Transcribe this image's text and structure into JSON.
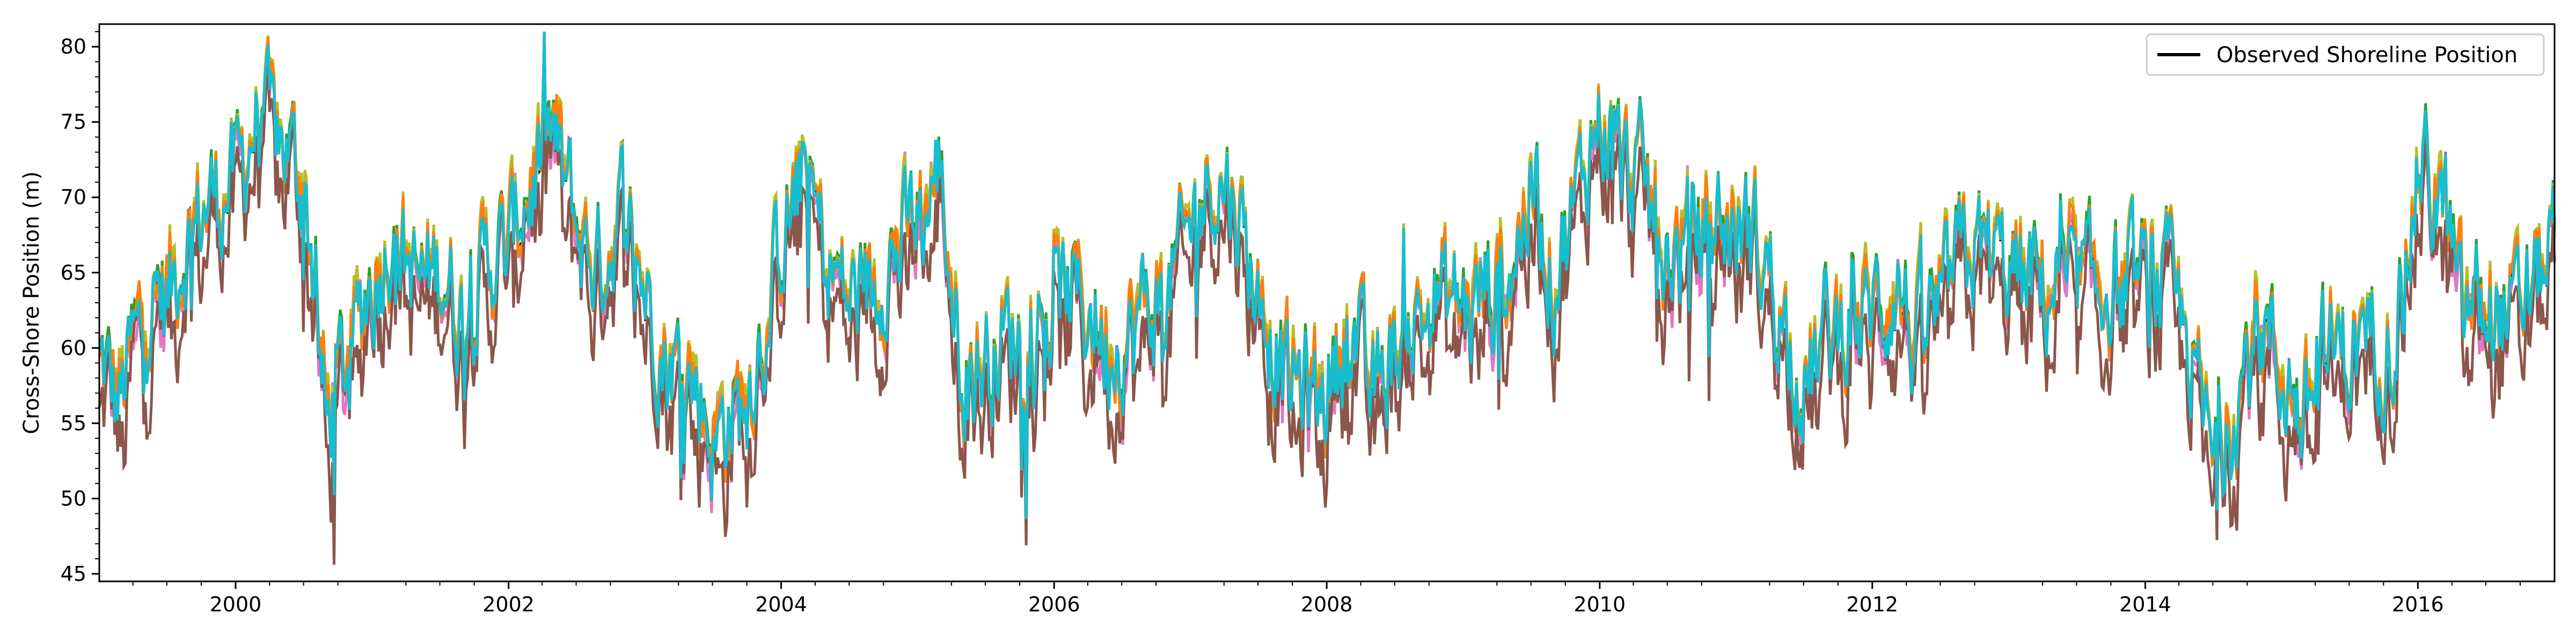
{
  "chart_data": {
    "type": "line",
    "title": "",
    "xlabel": "",
    "ylabel": "Cross-Shore Position (m)",
    "xlim": [
      "1999-01-01",
      "2017-01-01"
    ],
    "ylim": [
      44.5,
      81.5
    ],
    "x_ticks": [
      "2000",
      "2002",
      "2004",
      "2006",
      "2008",
      "2010",
      "2012",
      "2014",
      "2016"
    ],
    "y_ticks": [
      45,
      50,
      55,
      60,
      65,
      70,
      75,
      80
    ],
    "grid": false,
    "legend": {
      "position": "upper right",
      "entries": [
        "Observed Shoreline Position"
      ]
    },
    "dates": [
      "1999-01-01",
      "1999-03-01",
      "1999-05-01",
      "1999-07-01",
      "1999-09-01",
      "1999-11-01",
      "2000-01-01",
      "2000-03-01",
      "2000-05-01",
      "2000-07-01",
      "2000-09-01",
      "2000-11-01",
      "2001-01-01",
      "2001-03-01",
      "2001-05-01",
      "2001-07-01",
      "2001-09-01",
      "2001-11-01",
      "2002-01-01",
      "2002-03-01",
      "2002-05-01",
      "2002-07-01",
      "2002-09-01",
      "2002-11-01",
      "2003-01-01",
      "2003-03-01",
      "2003-05-01",
      "2003-07-01",
      "2003-09-01",
      "2003-11-01",
      "2004-01-01",
      "2004-03-01",
      "2004-05-01",
      "2004-07-01",
      "2004-09-01",
      "2004-11-01",
      "2005-01-01",
      "2005-03-01",
      "2005-05-01",
      "2005-07-01",
      "2005-09-01",
      "2005-11-01",
      "2006-01-01",
      "2006-03-01",
      "2006-05-01",
      "2006-07-01",
      "2006-09-01",
      "2006-11-01",
      "2007-01-01",
      "2007-03-01",
      "2007-05-01",
      "2007-07-01",
      "2007-09-01",
      "2007-11-01",
      "2008-01-01",
      "2008-03-01",
      "2008-05-01",
      "2008-07-01",
      "2008-09-01",
      "2008-11-01",
      "2009-01-01",
      "2009-03-01",
      "2009-05-01",
      "2009-07-01",
      "2009-09-01",
      "2009-11-01",
      "2010-01-01",
      "2010-03-01",
      "2010-05-01",
      "2010-07-01",
      "2010-09-01",
      "2010-11-01",
      "2011-01-01",
      "2011-03-01",
      "2011-05-01",
      "2011-07-01",
      "2011-09-01",
      "2011-11-01",
      "2012-01-01",
      "2012-03-01",
      "2012-05-01",
      "2012-07-01",
      "2012-09-01",
      "2012-11-01",
      "2013-01-01",
      "2013-03-01",
      "2013-05-01",
      "2013-07-01",
      "2013-09-01",
      "2013-11-01",
      "2014-01-01",
      "2014-03-01",
      "2014-05-01",
      "2014-07-01",
      "2014-09-01",
      "2014-11-01",
      "2015-01-01",
      "2015-03-01",
      "2015-05-01",
      "2015-07-01",
      "2015-09-01",
      "2015-11-01",
      "2016-01-01",
      "2016-03-01",
      "2016-05-01",
      "2016-07-01",
      "2016-09-01",
      "2016-11-01",
      "2017-01-01"
    ],
    "observed": [
      58.5,
      56.5,
      62.5,
      63.5,
      67.5,
      70.0,
      71.0,
      75.5,
      73.5,
      71.5,
      55.0,
      59.5,
      64.5,
      68.0,
      64.0,
      65.5,
      62.0,
      65.5,
      66.5,
      71.0,
      74.0,
      68.0,
      65.0,
      69.5,
      64.0,
      59.0,
      58.5,
      54.0,
      55.5,
      59.5,
      67.0,
      72.0,
      66.0,
      63.0,
      64.0,
      66.5,
      68.0,
      71.5,
      58.5,
      59.0,
      61.0,
      60.0,
      62.5,
      63.5,
      61.0,
      60.0,
      62.5,
      63.0,
      68.0,
      71.5,
      70.0,
      63.0,
      58.5,
      57.0,
      57.0,
      62.0,
      56.5,
      60.0,
      62.0,
      63.5,
      62.5,
      63.5,
      64.5,
      70.5,
      64.5,
      70.0,
      75.5,
      72.0,
      70.5,
      66.0,
      67.0,
      68.0,
      68.0,
      67.0,
      62.5,
      57.5,
      60.5,
      62.0,
      62.0,
      64.5,
      60.0,
      62.5,
      66.0,
      66.5,
      65.0,
      64.0,
      64.0,
      63.5,
      64.0,
      64.0,
      64.0,
      64.0,
      60.0,
      52.0,
      56.5,
      61.5,
      58.5,
      55.0,
      60.0,
      59.5,
      61.0,
      60.5,
      71.5,
      70.0,
      62.0,
      63.0,
      61.5,
      63.5,
      68.0
    ],
    "series": [
      {
        "name": "",
        "color": "#2ca02c",
        "offset": 0.4,
        "amp": 0.4,
        "phase": 0.0
      },
      {
        "name": "",
        "color": "#9467bd",
        "offset": 0.0,
        "amp": 0.5,
        "phase": 1.1
      },
      {
        "name": "",
        "color": "#e377c2",
        "offset": -0.3,
        "amp": 0.9,
        "phase": 2.3
      },
      {
        "name": "",
        "color": "#bcbd22",
        "offset": 0.5,
        "amp": 0.5,
        "phase": 3.1
      },
      {
        "name": "",
        "color": "#ff7f0e",
        "offset": 0.2,
        "amp": 0.4,
        "phase": 4.0
      },
      {
        "name": "",
        "color": "#8c564b",
        "offset": -2.3,
        "amp": 1.3,
        "phase": 5.2
      },
      {
        "name": "",
        "color": "#17becf",
        "offset": 0.0,
        "amp": 0.5,
        "phase": 0.7
      }
    ]
  }
}
